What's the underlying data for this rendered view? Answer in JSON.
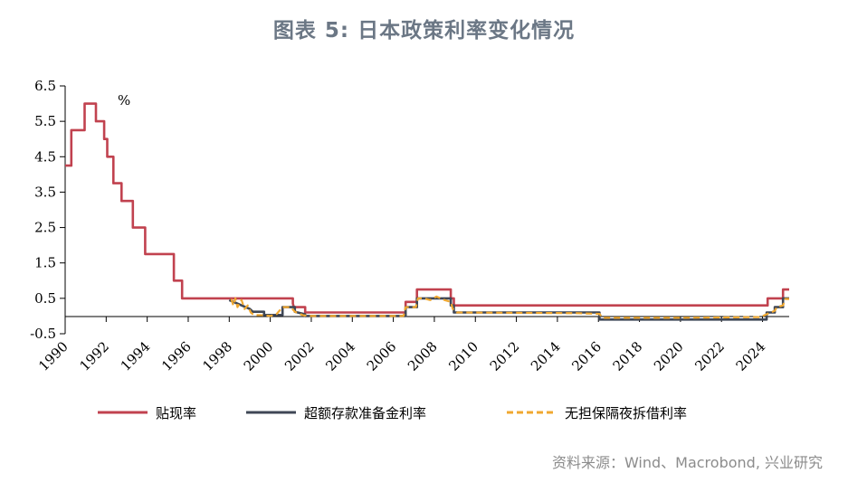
{
  "title": "图表 5: 日本政策利率变化情况",
  "source": "资料来源：Wind、Macrobond, 兴业研究",
  "chart_data": {
    "type": "line",
    "unit": "%",
    "ylim": [
      -0.5,
      6.5
    ],
    "yticks": [
      "6.5",
      "5.5",
      "4.5",
      "3.5",
      "2.5",
      "1.5",
      "0.5",
      "-0.5"
    ],
    "xlim": [
      1990,
      2025.3
    ],
    "xticks": [
      "1990",
      "1992",
      "1994",
      "1996",
      "1998",
      "2000",
      "2002",
      "2004",
      "2006",
      "2008",
      "2010",
      "2012",
      "2014",
      "2016",
      "2018",
      "2020",
      "2022",
      "2024"
    ],
    "legend_position": "bottom",
    "series": [
      {
        "name": "贴现率",
        "color": "#c1424f",
        "style": "solid",
        "points": [
          [
            1990.0,
            4.25
          ],
          [
            1990.3,
            4.25
          ],
          [
            1990.3,
            5.25
          ],
          [
            1990.95,
            5.25
          ],
          [
            1990.95,
            6.0
          ],
          [
            1991.5,
            6.0
          ],
          [
            1991.5,
            5.5
          ],
          [
            1991.9,
            5.5
          ],
          [
            1991.9,
            5.0
          ],
          [
            1992.05,
            5.0
          ],
          [
            1992.05,
            4.5
          ],
          [
            1992.35,
            4.5
          ],
          [
            1992.35,
            3.75
          ],
          [
            1992.75,
            3.75
          ],
          [
            1992.75,
            3.25
          ],
          [
            1993.3,
            3.25
          ],
          [
            1993.3,
            2.5
          ],
          [
            1993.9,
            2.5
          ],
          [
            1993.9,
            1.75
          ],
          [
            1995.3,
            1.75
          ],
          [
            1995.3,
            1.0
          ],
          [
            1995.7,
            1.0
          ],
          [
            1995.7,
            0.5
          ],
          [
            2001.1,
            0.5
          ],
          [
            2001.1,
            0.35
          ],
          [
            2001.15,
            0.25
          ],
          [
            2001.7,
            0.25
          ],
          [
            2001.7,
            0.1
          ],
          [
            2006.6,
            0.1
          ],
          [
            2006.6,
            0.4
          ],
          [
            2007.15,
            0.4
          ],
          [
            2007.15,
            0.75
          ],
          [
            2008.8,
            0.75
          ],
          [
            2008.8,
            0.5
          ],
          [
            2008.95,
            0.5
          ],
          [
            2008.95,
            0.3
          ],
          [
            2024.25,
            0.3
          ],
          [
            2024.25,
            0.5
          ],
          [
            2025.0,
            0.5
          ],
          [
            2025.0,
            0.75
          ],
          [
            2025.3,
            0.75
          ]
        ]
      },
      {
        "name": "超额存款准备金利率",
        "color": "#3f4756",
        "style": "solid",
        "points": [
          [
            1998.0,
            0.45
          ],
          [
            1999.0,
            0.2
          ],
          [
            1999.15,
            0.12
          ],
          [
            1999.7,
            0.12
          ],
          [
            1999.7,
            0.03
          ],
          [
            2000.6,
            0.03
          ],
          [
            2000.6,
            0.25
          ],
          [
            2001.2,
            0.25
          ],
          [
            2001.2,
            0.12
          ],
          [
            2001.7,
            0.05
          ],
          [
            2001.7,
            0.0
          ],
          [
            2006.6,
            0.0
          ],
          [
            2006.6,
            0.25
          ],
          [
            2007.15,
            0.25
          ],
          [
            2007.15,
            0.5
          ],
          [
            2008.8,
            0.5
          ],
          [
            2008.8,
            0.3
          ],
          [
            2008.95,
            0.3
          ],
          [
            2008.95,
            0.1
          ],
          [
            2016.05,
            0.1
          ],
          [
            2016.05,
            -0.1
          ],
          [
            2024.2,
            -0.1
          ],
          [
            2024.2,
            0.1
          ],
          [
            2024.6,
            0.1
          ],
          [
            2024.6,
            0.25
          ],
          [
            2025.0,
            0.25
          ],
          [
            2025.0,
            0.5
          ],
          [
            2025.3,
            0.5
          ]
        ]
      },
      {
        "name": "无担保隔夜拆借利率",
        "color": "#f0a830",
        "style": "dashed",
        "points": [
          [
            1998.1,
            0.48
          ],
          [
            1998.2,
            0.3
          ],
          [
            1998.3,
            0.5
          ],
          [
            1998.4,
            0.25
          ],
          [
            1998.6,
            0.45
          ],
          [
            1998.75,
            0.2
          ],
          [
            1998.9,
            0.3
          ],
          [
            1999.05,
            0.1
          ],
          [
            1999.2,
            0.03
          ],
          [
            1999.7,
            0.02
          ],
          [
            2000.0,
            0.0
          ],
          [
            2000.3,
            0.05
          ],
          [
            2000.6,
            0.25
          ],
          [
            2001.0,
            0.25
          ],
          [
            2001.2,
            0.12
          ],
          [
            2001.6,
            0.02
          ],
          [
            2002.0,
            0.0
          ],
          [
            2006.5,
            0.0
          ],
          [
            2006.6,
            0.25
          ],
          [
            2007.1,
            0.25
          ],
          [
            2007.2,
            0.5
          ],
          [
            2007.5,
            0.5
          ],
          [
            2007.8,
            0.45
          ],
          [
            2008.1,
            0.55
          ],
          [
            2008.5,
            0.45
          ],
          [
            2008.8,
            0.4
          ],
          [
            2008.9,
            0.2
          ],
          [
            2009.1,
            0.1
          ],
          [
            2015.0,
            0.08
          ],
          [
            2016.05,
            0.06
          ],
          [
            2016.2,
            -0.05
          ],
          [
            2020.0,
            -0.05
          ],
          [
            2023.9,
            -0.03
          ],
          [
            2024.2,
            0.05
          ],
          [
            2024.6,
            0.15
          ],
          [
            2024.7,
            0.25
          ],
          [
            2025.0,
            0.3
          ],
          [
            2025.1,
            0.48
          ],
          [
            2025.3,
            0.48
          ]
        ]
      }
    ]
  }
}
